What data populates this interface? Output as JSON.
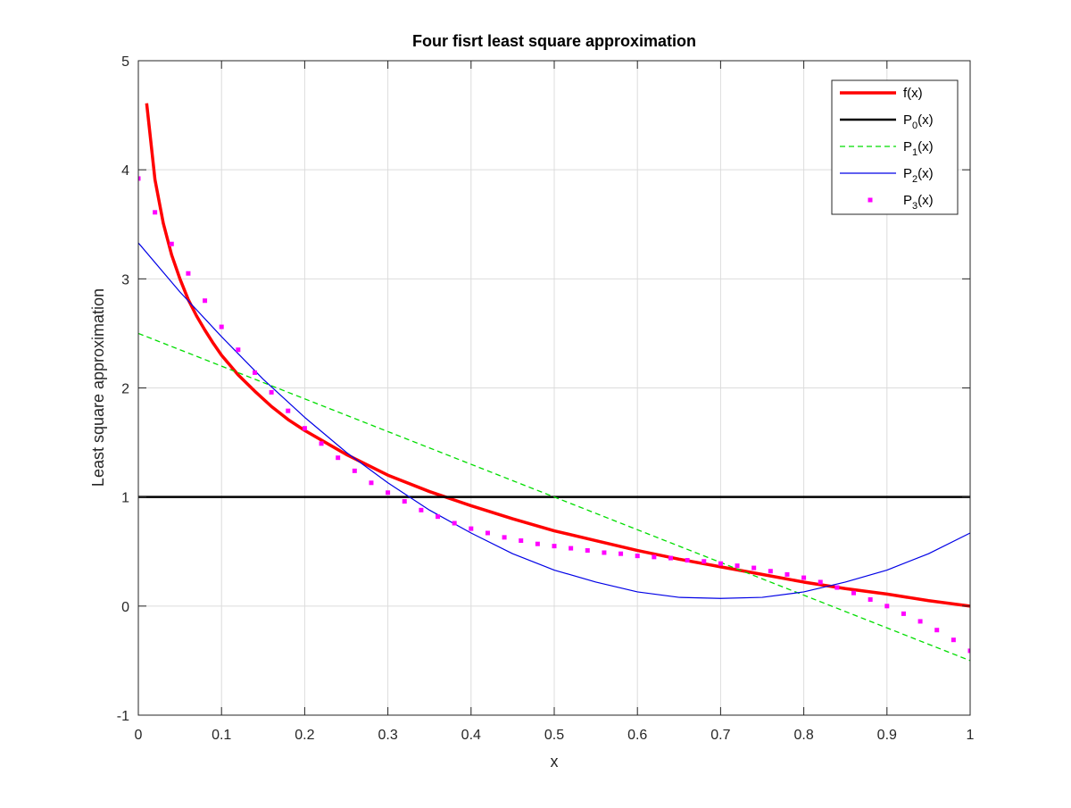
{
  "chart_data": {
    "type": "line",
    "title": "Four fisrt least square approximation",
    "xlabel": "x",
    "ylabel": "Least square approximation",
    "xlim": [
      0,
      1
    ],
    "ylim": [
      -1,
      5
    ],
    "xticks": [
      0,
      0.1,
      0.2,
      0.3,
      0.4,
      0.5,
      0.6,
      0.7,
      0.8,
      0.9,
      1
    ],
    "xtick_labels": [
      "0",
      "0.1",
      "0.2",
      "0.3",
      "0.4",
      "0.5",
      "0.6",
      "0.7",
      "0.8",
      "0.9",
      "1"
    ],
    "yticks": [
      -1,
      0,
      1,
      2,
      3,
      4,
      5
    ],
    "ytick_labels": [
      "-1",
      "0",
      "1",
      "2",
      "3",
      "4",
      "5"
    ],
    "grid": true,
    "legend_position": "top-right",
    "series": [
      {
        "name": "f(x)",
        "legend_main": "f(x)",
        "legend_sub": "",
        "legend_tail": "",
        "color": "#ff0000",
        "style": "solid-thick",
        "x": [
          0.01,
          0.02,
          0.03,
          0.04,
          0.05,
          0.06,
          0.07,
          0.08,
          0.09,
          0.1,
          0.12,
          0.14,
          0.16,
          0.18,
          0.2,
          0.25,
          0.3,
          0.35,
          0.4,
          0.45,
          0.5,
          0.55,
          0.6,
          0.65,
          0.7,
          0.75,
          0.8,
          0.85,
          0.9,
          0.95,
          1.0
        ],
        "y": [
          4.61,
          3.91,
          3.51,
          3.22,
          3.0,
          2.81,
          2.66,
          2.53,
          2.41,
          2.3,
          2.12,
          1.97,
          1.83,
          1.71,
          1.61,
          1.39,
          1.2,
          1.05,
          0.92,
          0.8,
          0.69,
          0.6,
          0.51,
          0.43,
          0.36,
          0.29,
          0.22,
          0.16,
          0.11,
          0.05,
          0.0
        ]
      },
      {
        "name": "P0(x)",
        "legend_main": "P",
        "legend_sub": "0",
        "legend_tail": "(x)",
        "color": "#000000",
        "style": "solid-medium",
        "x": [
          0,
          1
        ],
        "y": [
          1,
          1
        ]
      },
      {
        "name": "P1(x)",
        "legend_main": "P",
        "legend_sub": "1",
        "legend_tail": "(x)",
        "color": "#00dd00",
        "style": "dashed",
        "x": [
          0,
          1
        ],
        "y": [
          2.5,
          -0.5
        ]
      },
      {
        "name": "P2(x)",
        "legend_main": "P",
        "legend_sub": "2",
        "legend_tail": "(x)",
        "color": "#0000e6",
        "style": "solid-thin",
        "x": [
          0,
          0.05,
          0.1,
          0.15,
          0.2,
          0.25,
          0.3,
          0.35,
          0.4,
          0.45,
          0.5,
          0.55,
          0.6,
          0.65,
          0.7,
          0.75,
          0.8,
          0.85,
          0.9,
          0.95,
          1.0
        ],
        "y": [
          3.33,
          2.88,
          2.47,
          2.08,
          1.73,
          1.41,
          1.13,
          0.88,
          0.67,
          0.48,
          0.33,
          0.22,
          0.13,
          0.08,
          0.07,
          0.08,
          0.13,
          0.22,
          0.33,
          0.48,
          0.67
        ]
      },
      {
        "name": "P3(x)",
        "legend_main": "P",
        "legend_sub": "3",
        "legend_tail": "(x)",
        "color": "#ff00ff",
        "style": "dotted",
        "x": [
          0.0,
          0.02,
          0.04,
          0.06,
          0.08,
          0.1,
          0.12,
          0.14,
          0.16,
          0.18,
          0.2,
          0.22,
          0.24,
          0.26,
          0.28,
          0.3,
          0.32,
          0.34,
          0.36,
          0.38,
          0.4,
          0.42,
          0.44,
          0.46,
          0.48,
          0.5,
          0.52,
          0.54,
          0.56,
          0.58,
          0.6,
          0.62,
          0.64,
          0.66,
          0.68,
          0.7,
          0.72,
          0.74,
          0.76,
          0.78,
          0.8,
          0.82,
          0.84,
          0.86,
          0.88,
          0.9,
          0.92,
          0.94,
          0.96,
          0.98,
          1.0
        ],
        "y": [
          3.92,
          3.61,
          3.32,
          3.05,
          2.8,
          2.56,
          2.35,
          2.14,
          1.96,
          1.79,
          1.63,
          1.49,
          1.36,
          1.24,
          1.13,
          1.04,
          0.96,
          0.88,
          0.82,
          0.76,
          0.71,
          0.67,
          0.63,
          0.6,
          0.57,
          0.55,
          0.53,
          0.51,
          0.49,
          0.48,
          0.46,
          0.45,
          0.44,
          0.42,
          0.41,
          0.39,
          0.37,
          0.35,
          0.32,
          0.29,
          0.26,
          0.22,
          0.17,
          0.12,
          0.06,
          0.0,
          -0.07,
          -0.14,
          -0.22,
          -0.31,
          -0.41
        ]
      }
    ]
  }
}
